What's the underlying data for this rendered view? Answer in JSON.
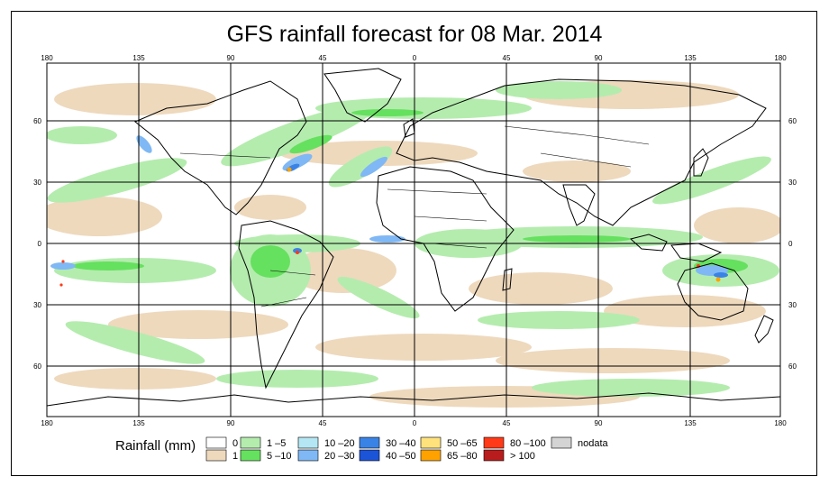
{
  "title": "GFS rainfall forecast for 08 Mar. 2014",
  "map": {
    "lon_ticks": [
      "180",
      "135",
      "90",
      "45",
      "0",
      "45",
      "90",
      "135",
      "180"
    ],
    "lat_ticks": [
      "60",
      "30",
      "0",
      "30",
      "60"
    ]
  },
  "legend": {
    "title": "Rainfall (mm)",
    "items": [
      {
        "label": "0",
        "color": "#ffffff"
      },
      {
        "label": "1",
        "color": "#eed9bd"
      },
      {
        "label": "1 –5",
        "color": "#b4ecae"
      },
      {
        "label": "5 –10",
        "color": "#66e05f"
      },
      {
        "label": "10 –20",
        "color": "#b4e7f3"
      },
      {
        "label": "20 –30",
        "color": "#7fb8f4"
      },
      {
        "label": "30 –40",
        "color": "#3a83e6"
      },
      {
        "label": "40 –50",
        "color": "#1c54d8"
      },
      {
        "label": "50 –65",
        "color": "#ffe27c"
      },
      {
        "label": "65 –80",
        "color": "#ffa200"
      },
      {
        "label": "80 –100",
        "color": "#ff3a18"
      },
      {
        "label": "> 100",
        "color": "#b91c1c"
      },
      {
        "label": "nodata",
        "color": "#d4d4d4"
      }
    ]
  }
}
